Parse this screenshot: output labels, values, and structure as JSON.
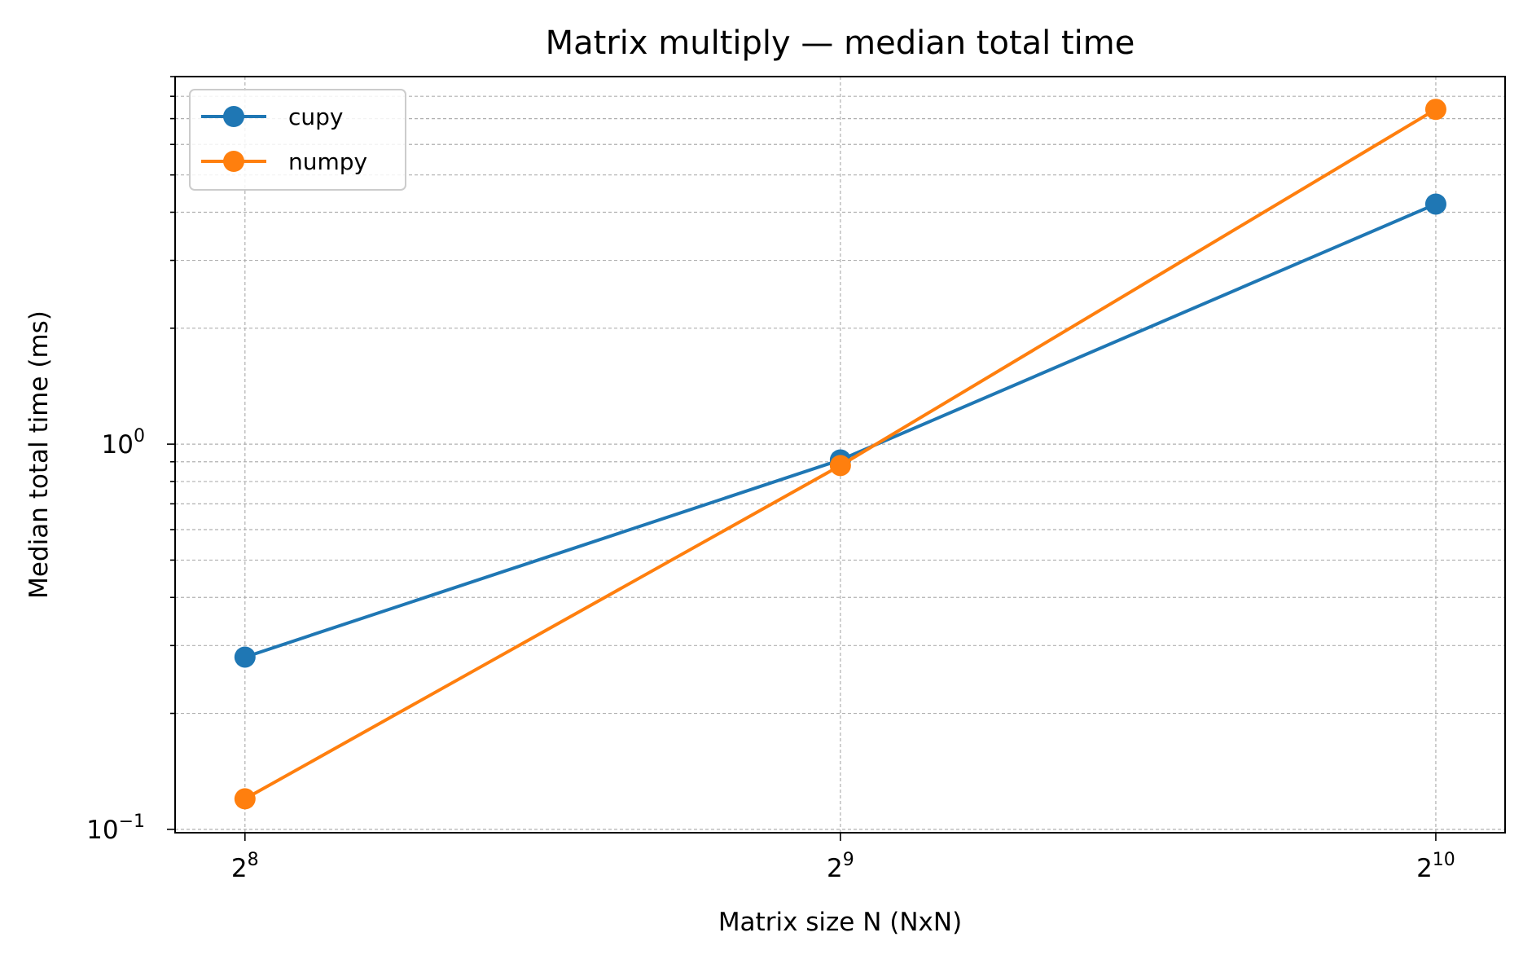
{
  "chart_data": {
    "type": "line",
    "title": "Matrix multiply — median total time",
    "xlabel": "Matrix size N (NxN)",
    "ylabel": "Median total time (ms)",
    "x_scale": "log2",
    "y_scale": "log10",
    "x": [
      256,
      512,
      1024
    ],
    "x_tick_labels": [
      {
        "base": "2",
        "exp": "8"
      },
      {
        "base": "2",
        "exp": "9"
      },
      {
        "base": "2",
        "exp": "10"
      }
    ],
    "y_tick_labels": [
      {
        "value": 0.1,
        "base": "10",
        "exp": "−1"
      },
      {
        "value": 1,
        "base": "10",
        "exp": "0"
      }
    ],
    "xlim": [
      236,
      1110
    ],
    "ylim": [
      0.098,
      9.0
    ],
    "grid": true,
    "legend_position": "top-left",
    "series": [
      {
        "name": "cupy",
        "color": "#1f77b4",
        "values": [
          0.28,
          0.91,
          4.2
        ]
      },
      {
        "name": "numpy",
        "color": "#ff7f0e",
        "values": [
          0.12,
          0.88,
          7.4
        ]
      }
    ]
  }
}
